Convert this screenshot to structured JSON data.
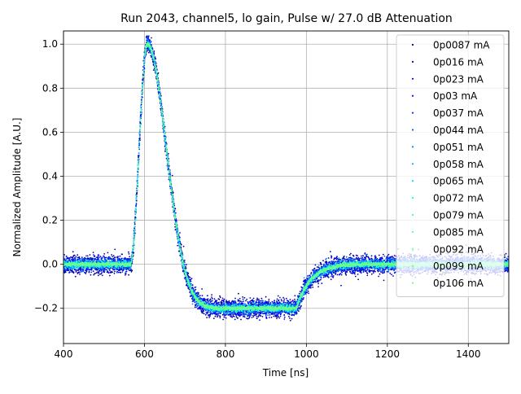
{
  "chart_data": {
    "type": "scatter",
    "title": "Run 2043, channel5, lo gain, Pulse w/ 27.0 dB Attenuation",
    "xlabel": "Time [ns]",
    "ylabel": "Normalized Amplitude [A.U.]",
    "xlim": [
      400,
      1500
    ],
    "ylim": [
      -0.36,
      1.06
    ],
    "xticks": [
      400,
      600,
      800,
      1000,
      1200,
      1400
    ],
    "yticks": [
      -0.2,
      0.0,
      0.2,
      0.4,
      0.6,
      0.8,
      1.0
    ],
    "xtick_labels": [
      "400",
      "600",
      "800",
      "1000",
      "1200",
      "1400"
    ],
    "ytick_labels": [
      "−0.2",
      "0.0",
      "0.2",
      "0.4",
      "0.6",
      "0.8",
      "1.0"
    ],
    "grid": true,
    "legend_position": "top-right",
    "waveform": {
      "baseline": 0.0,
      "rise_start_ns": 565,
      "peak_ns": 607,
      "peak_value": 1.0,
      "undershoot_value": -0.2,
      "undershoot_start_ns": 780,
      "undershoot_end_ns": 975,
      "recovery_end_ns": 1120
    },
    "series": [
      {
        "name": "0p0087 mA",
        "color": "#00008f",
        "noise": 0.045
      },
      {
        "name": "0p016 mA",
        "color": "#0000b8",
        "noise": 0.042
      },
      {
        "name": "0p023 mA",
        "color": "#0000e0",
        "noise": 0.038
      },
      {
        "name": "0p03 mA",
        "color": "#0010ff",
        "noise": 0.034
      },
      {
        "name": "0p037 mA",
        "color": "#0038ff",
        "noise": 0.03
      },
      {
        "name": "0p044 mA",
        "color": "#0060ff",
        "noise": 0.027
      },
      {
        "name": "0p051 mA",
        "color": "#0088ff",
        "noise": 0.024
      },
      {
        "name": "0p058 mA",
        "color": "#00b0ff",
        "noise": 0.021
      },
      {
        "name": "0p065 mA",
        "color": "#00d4ff",
        "noise": 0.018
      },
      {
        "name": "0p072 mA",
        "color": "#10f8e6",
        "noise": 0.015
      },
      {
        "name": "0p079 mA",
        "color": "#30ffc6",
        "noise": 0.013
      },
      {
        "name": "0p085 mA",
        "color": "#50ffa6",
        "noise": 0.011
      },
      {
        "name": "0p092 mA",
        "color": "#5dff99",
        "noise": 0.009
      },
      {
        "name": "0p099 mA",
        "color": "#66ff90",
        "noise": 0.008
      },
      {
        "name": "0p106 mA",
        "color": "#70ff86",
        "noise": 0.007
      }
    ]
  }
}
